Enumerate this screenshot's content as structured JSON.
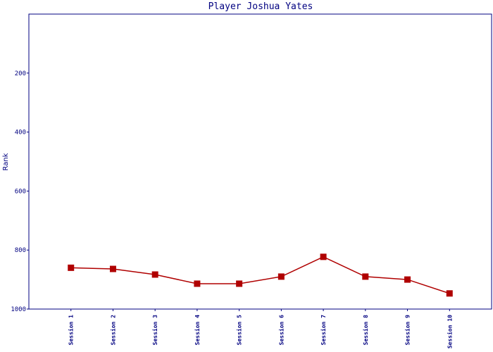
{
  "chart_data": {
    "type": "line",
    "title": "Player Joshua Yates",
    "ylabel": "Rank",
    "categories": [
      "Session 1",
      "Session 2",
      "Session 3",
      "Session 4",
      "Session 5",
      "Session 6",
      "Session 7",
      "Session 8",
      "Session 9",
      "Session 10"
    ],
    "series": [
      {
        "name": "Rank",
        "color": "#b00000",
        "values": [
          860,
          864,
          883,
          914,
          914,
          890,
          823,
          890,
          900,
          947
        ]
      }
    ],
    "ylim": [
      0,
      1000
    ],
    "yticks": [
      200,
      400,
      600,
      800,
      1000
    ],
    "y_inverted": true,
    "grid": false
  }
}
